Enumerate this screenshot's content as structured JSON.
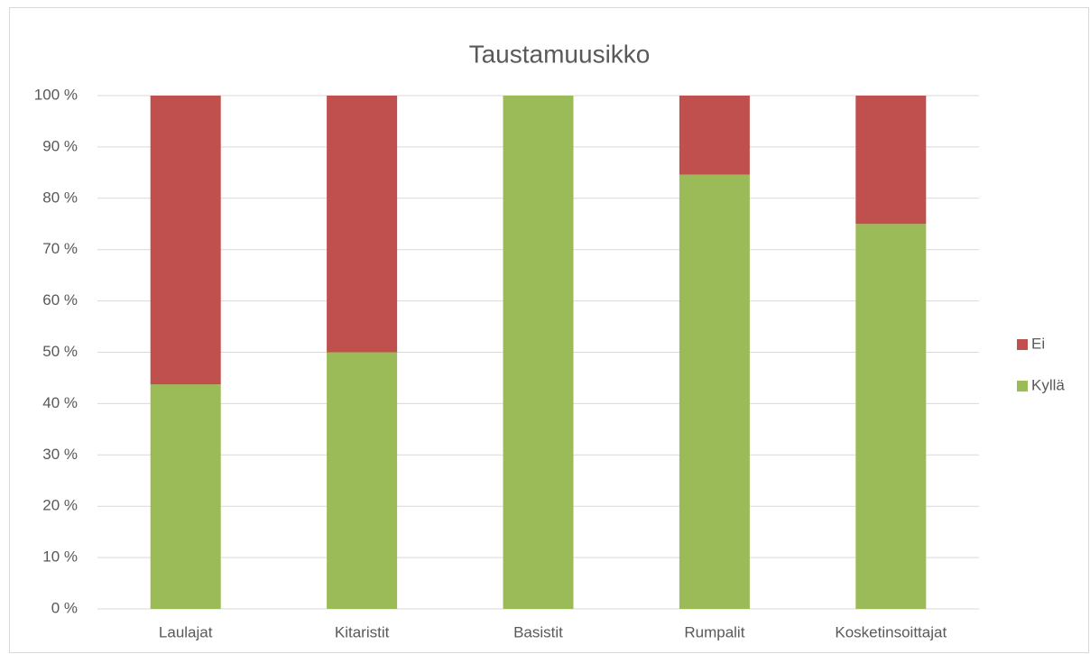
{
  "chart_data": {
    "type": "stacked_bar",
    "title": "Taustamuusikko",
    "categories": [
      "Laulajat",
      "Kitaristit",
      "Basistit",
      "Rumpalit",
      "Kosketinsoittajat"
    ],
    "series": [
      {
        "name": "Kyllä",
        "color": "#9bbb59",
        "values": [
          43.75,
          50,
          100,
          84.6,
          75
        ]
      },
      {
        "name": "Ei",
        "color": "#c0504d",
        "values": [
          56.25,
          50,
          0,
          15.4,
          25
        ]
      }
    ],
    "ylim": [
      0,
      100
    ],
    "yticks": [
      {
        "value": 0,
        "label": "0 %"
      },
      {
        "value": 10,
        "label": "10 %"
      },
      {
        "value": 20,
        "label": "20 %"
      },
      {
        "value": 30,
        "label": "30 %"
      },
      {
        "value": 40,
        "label": "40 %"
      },
      {
        "value": 50,
        "label": "50 %"
      },
      {
        "value": 60,
        "label": "60 %"
      },
      {
        "value": 70,
        "label": "70 %"
      },
      {
        "value": 80,
        "label": "80 %"
      },
      {
        "value": 90,
        "label": "90 %"
      },
      {
        "value": 100,
        "label": "100 %"
      }
    ],
    "grid": true,
    "legend": "right"
  }
}
